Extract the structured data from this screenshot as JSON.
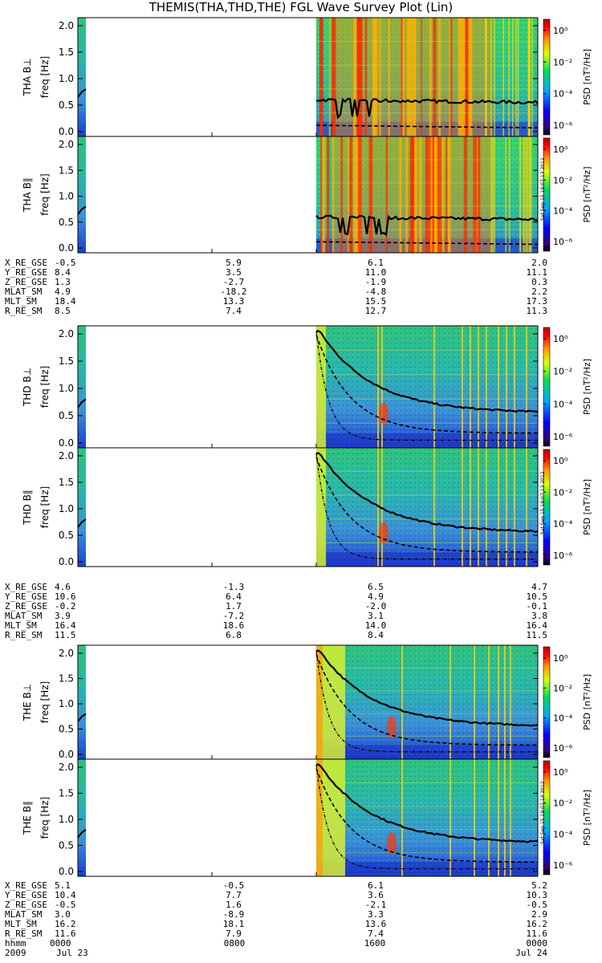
{
  "title": "THEMIS(THA,THD,THE) FGL Wave Survey Plot (Lin)",
  "colorbar": {
    "label": "PSD [nT²/Hz]",
    "ticks": [
      "10⁰",
      "10⁻²",
      "10⁻⁴",
      "10⁻⁶"
    ]
  },
  "freq_ticks": [
    "2.0",
    "1.5",
    "1.0",
    "0.5",
    "0.0"
  ],
  "stamps": [
    "Sat Sep 15 19:07:13 2012",
    "Sat Sep 15 19:07:13 2012",
    "Sat Sep 15 19:07:14 2012"
  ],
  "chart_data": [
    {
      "type": "heatmap",
      "probe": "THA",
      "panel": "THA B⊥",
      "ylabel": "freq [Hz]",
      "ylim": [
        0,
        2
      ],
      "x_range": [
        "0000",
        "0000"
      ]
    },
    {
      "type": "heatmap",
      "probe": "THA",
      "panel": "THA B∥",
      "ylabel": "freq [Hz]",
      "ylim": [
        0,
        2
      ],
      "x_range": [
        "0000",
        "0000"
      ]
    },
    {
      "type": "heatmap",
      "probe": "THD",
      "panel": "THD B⊥",
      "ylabel": "freq [Hz]",
      "ylim": [
        0,
        2
      ],
      "x_range": [
        "0000",
        "0000"
      ]
    },
    {
      "type": "heatmap",
      "probe": "THD",
      "panel": "THD B∥",
      "ylabel": "freq [Hz]",
      "ylim": [
        0,
        2
      ],
      "x_range": [
        "0000",
        "0000"
      ]
    },
    {
      "type": "heatmap",
      "probe": "THE",
      "panel": "THE B⊥",
      "ylabel": "freq [Hz]",
      "ylim": [
        0,
        2
      ],
      "x_range": [
        "0000",
        "0000"
      ]
    },
    {
      "type": "heatmap",
      "probe": "THE",
      "panel": "THE B∥",
      "ylabel": "freq [Hz]",
      "ylim": [
        0,
        2
      ],
      "x_range": [
        "0000",
        "0000"
      ]
    }
  ],
  "orbit_labels": [
    "X_RE_GSE",
    "Y_RE_GSE",
    "Z_RE_GSE",
    "MLAT_SM",
    "MLT_SM",
    "R_RE_SM"
  ],
  "orbit": [
    {
      "probe": "THA",
      "rows": [
        [
          "-0.5",
          "5.9",
          "6.1",
          "2.0"
        ],
        [
          "8.4",
          "3.5",
          "11.0",
          "11.1"
        ],
        [
          "1.3",
          "-2.7",
          "-1.9",
          "0.3"
        ],
        [
          "4.9",
          "-18.2",
          "-4.8",
          "2.2"
        ],
        [
          "18.4",
          "13.3",
          "15.5",
          "17.3"
        ],
        [
          "8.5",
          "7.4",
          "12.7",
          "11.3"
        ]
      ]
    },
    {
      "probe": "THD",
      "rows": [
        [
          "4.6",
          "-1.3",
          "6.5",
          "4.7"
        ],
        [
          "10.6",
          "6.4",
          "4.9",
          "10.5"
        ],
        [
          "-0.2",
          "1.7",
          "-2.0",
          "-0.1"
        ],
        [
          "3.9",
          "-7.2",
          "3.1",
          "3.8"
        ],
        [
          "16.4",
          "18.6",
          "14.0",
          "16.4"
        ],
        [
          "11.5",
          "6.8",
          "8.4",
          "11.5"
        ]
      ]
    },
    {
      "probe": "THE",
      "rows": [
        [
          "5.1",
          "-0.5",
          "6.1",
          "5.2"
        ],
        [
          "10.4",
          "7.7",
          "3.6",
          "10.3"
        ],
        [
          "-0.5",
          "1.6",
          "-2.1",
          "-0.5"
        ],
        [
          "3.0",
          "-8.9",
          "3.3",
          "2.9"
        ],
        [
          "16.2",
          "18.1",
          "13.6",
          "16.2"
        ],
        [
          "11.6",
          "7.9",
          "7.4",
          "11.6"
        ]
      ]
    }
  ],
  "time_axis": {
    "row1_label": "hhmm",
    "row1": [
      "0000",
      "0800",
      "1600",
      "0000"
    ],
    "row2_label": "2009",
    "row2_first": "Jul 23",
    "row2_last": "Jul 24"
  }
}
